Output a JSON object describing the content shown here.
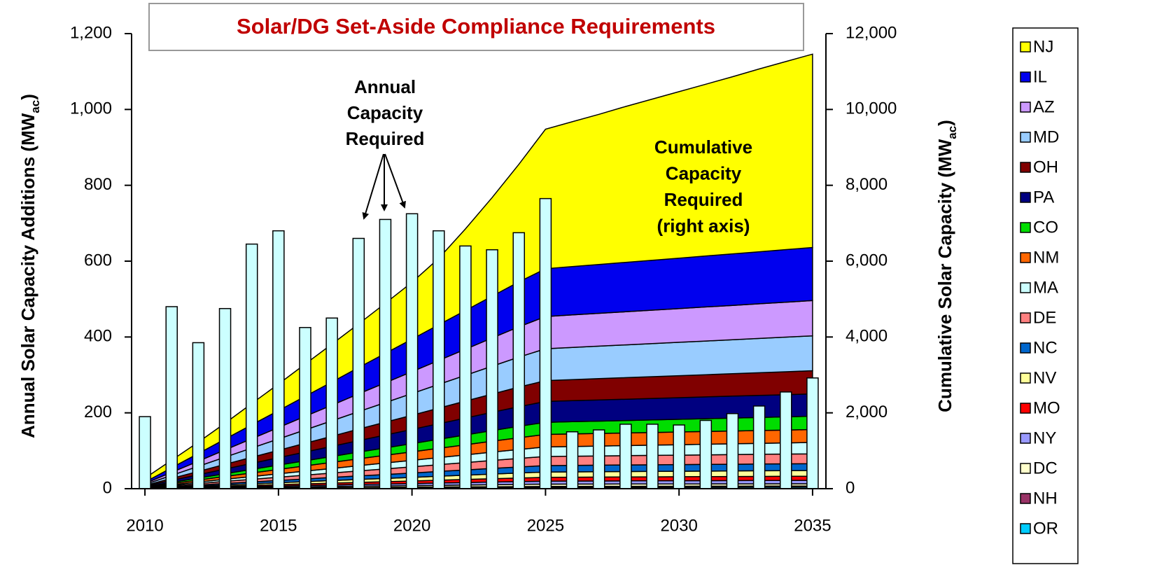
{
  "chart_data": {
    "type": "area",
    "title": "Solar/DG Set-Aside Compliance Requirements",
    "ylabel": [
      "Annual Solar Capacity Additions (MW",
      "ac",
      ")"
    ],
    "y2label": [
      "Cumulative Solar Capacity (MW",
      "ac",
      ")"
    ],
    "annotations": [
      [
        "Annual",
        "Capacity",
        "Required"
      ],
      [
        "Cumulative",
        "Capacity",
        "Required",
        "(right axis)"
      ]
    ],
    "x": [
      2010,
      2011,
      2012,
      2013,
      2014,
      2015,
      2016,
      2017,
      2018,
      2019,
      2020,
      2021,
      2022,
      2023,
      2024,
      2025,
      2026,
      2027,
      2028,
      2029,
      2030,
      2031,
      2032,
      2033,
      2034,
      2035
    ],
    "xlim": [
      2009.5,
      2035.5
    ],
    "xticks": [
      2010,
      2015,
      2020,
      2025,
      2030,
      2035
    ],
    "ylim": [
      0,
      1200
    ],
    "yticks": [
      0,
      200,
      400,
      600,
      800,
      {
        "value": 1000,
        "label": "1,000"
      },
      {
        "value": 1200,
        "label": "1,200"
      }
    ],
    "y2lim": [
      0,
      12000
    ],
    "y2ticks": [
      0,
      {
        "value": 2000,
        "label": "2,000"
      },
      {
        "value": 4000,
        "label": "4,000"
      },
      {
        "value": 6000,
        "label": "6,000"
      },
      {
        "value": 8000,
        "label": "8,000"
      },
      {
        "value": 10000,
        "label": "10,000"
      },
      {
        "value": 12000,
        "label": "12,000"
      }
    ],
    "legend": "right",
    "annual": {
      "type": "bar",
      "axis": "y",
      "color": "#ccffff",
      "values": [
        190,
        480,
        385,
        475,
        645,
        680,
        425,
        450,
        660,
        710,
        725,
        680,
        640,
        630,
        675,
        765,
        150,
        155,
        170,
        170,
        168,
        180,
        198,
        218,
        255,
        292
      ]
    },
    "series": [
      {
        "name": "NJ",
        "color": "#ffff00",
        "axis": "y2",
        "values": [
          100,
          200,
          300,
          420,
          560,
          700,
          850,
          1000,
          1150,
          1320,
          1500,
          1750,
          2150,
          2600,
          3100,
          3680,
          3820,
          3960,
          4110,
          4250,
          4390,
          4530,
          4670,
          4820,
          4960,
          5100
        ]
      },
      {
        "name": "IL",
        "color": "#0000ee",
        "axis": "y2",
        "values": [
          38,
          120,
          202,
          284,
          365,
          447,
          529,
          611,
          693,
          775,
          857,
          939,
          1021,
          1103,
          1184,
          1260,
          1274,
          1288,
          1302,
          1316,
          1330,
          1344,
          1358,
          1372,
          1386,
          1400
        ]
      },
      {
        "name": "AZ",
        "color": "#cc99ff",
        "axis": "y2",
        "values": [
          26,
          81,
          136,
          191,
          247,
          302,
          357,
          412,
          468,
          523,
          578,
          633,
          689,
          744,
          799,
          850,
          858,
          866,
          874,
          882,
          890,
          898,
          906,
          914,
          922,
          930
        ]
      },
      {
        "name": "MD",
        "color": "#99ccff",
        "axis": "y2",
        "values": [
          25,
          80,
          134,
          189,
          244,
          298,
          353,
          407,
          462,
          517,
          571,
          626,
          680,
          735,
          790,
          840,
          848,
          856,
          864,
          872,
          880,
          888,
          896,
          904,
          912,
          920
        ]
      },
      {
        "name": "OH",
        "color": "#800000",
        "axis": "y2",
        "values": [
          17,
          52,
          88,
          124,
          160,
          195,
          231,
          267,
          303,
          338,
          374,
          410,
          446,
          481,
          517,
          550,
          556,
          562,
          568,
          574,
          580,
          586,
          592,
          598,
          604,
          610
        ]
      },
      {
        "name": "PA",
        "color": "#000080",
        "axis": "y2",
        "values": [
          17,
          52,
          88,
          124,
          160,
          195,
          231,
          267,
          303,
          338,
          374,
          410,
          446,
          481,
          517,
          550,
          554,
          558,
          562,
          566,
          570,
          574,
          578,
          582,
          586,
          590
        ]
      },
      {
        "name": "CO",
        "color": "#00dd00",
        "axis": "y2",
        "values": [
          10,
          30,
          51,
          72,
          93,
          114,
          134,
          155,
          176,
          197,
          218,
          238,
          259,
          280,
          301,
          320,
          323,
          326,
          329,
          332,
          335,
          338,
          341,
          344,
          347,
          350
        ]
      },
      {
        "name": "NM",
        "color": "#ff6600",
        "axis": "y2",
        "values": [
          10,
          31,
          53,
          74,
          96,
          117,
          139,
          160,
          182,
          203,
          224,
          246,
          267,
          289,
          310,
          330,
          331,
          332,
          333,
          334,
          335,
          336,
          337,
          338,
          339,
          340
        ]
      },
      {
        "name": "MA",
        "color": "#ccffff",
        "axis": "y2",
        "values": [
          8,
          24,
          40,
          56,
          73,
          89,
          105,
          121,
          138,
          154,
          170,
          186,
          203,
          219,
          235,
          250,
          255,
          260,
          265,
          270,
          275,
          280,
          285,
          290,
          295,
          300
        ]
      },
      {
        "name": "DE",
        "color": "#ff8080",
        "axis": "y2",
        "values": [
          7,
          23,
          38,
          54,
          70,
          85,
          101,
          116,
          132,
          148,
          163,
          179,
          194,
          210,
          226,
          240,
          242,
          244,
          246,
          248,
          250,
          252,
          254,
          256,
          258,
          260
        ]
      },
      {
        "name": "NC",
        "color": "#0066cc",
        "axis": "y2",
        "values": [
          5,
          16,
          27,
          38,
          49,
          60,
          71,
          82,
          94,
          105,
          116,
          127,
          138,
          149,
          160,
          170,
          171,
          172,
          173,
          174,
          175,
          176,
          177,
          178,
          179,
          180
        ]
      },
      {
        "name": "NV",
        "color": "#ffff99",
        "axis": "y2",
        "values": [
          4,
          13,
          22,
          32,
          41,
          50,
          59,
          68,
          77,
          86,
          95,
          104,
          113,
          123,
          132,
          140,
          141,
          142,
          143,
          144,
          145,
          146,
          147,
          148,
          149,
          150
        ]
      },
      {
        "name": "MO",
        "color": "#ff0000",
        "axis": "y2",
        "values": [
          3,
          10,
          16,
          23,
          29,
          36,
          42,
          49,
          55,
          62,
          68,
          75,
          81,
          88,
          94,
          100,
          101,
          102,
          103,
          104,
          105,
          106,
          107,
          108,
          109,
          110
        ]
      },
      {
        "name": "NY",
        "color": "#9999ff",
        "axis": "y2",
        "values": [
          2,
          8,
          13,
          18,
          23,
          28,
          34,
          39,
          44,
          49,
          54,
          60,
          65,
          70,
          75,
          80,
          81,
          82,
          83,
          84,
          85,
          86,
          87,
          88,
          89,
          90
        ]
      },
      {
        "name": "DC",
        "color": "#ffffcc",
        "axis": "y2",
        "values": [
          2,
          6,
          10,
          14,
          17,
          21,
          25,
          29,
          33,
          37,
          41,
          45,
          49,
          53,
          56,
          60,
          60,
          60,
          60,
          60,
          60,
          60,
          60,
          60,
          60,
          60
        ]
      },
      {
        "name": "NH",
        "color": "#993366",
        "axis": "y2",
        "values": [
          1,
          3,
          5,
          7,
          9,
          11,
          13,
          15,
          17,
          18,
          20,
          22,
          24,
          26,
          28,
          30,
          30,
          30,
          30,
          30,
          30,
          30,
          30,
          30,
          30,
          30
        ]
      },
      {
        "name": "OR",
        "color": "#00ccff",
        "axis": "y2",
        "values": [
          1,
          3,
          5,
          7,
          9,
          11,
          13,
          15,
          17,
          18,
          20,
          22,
          24,
          26,
          28,
          30,
          31,
          32,
          33,
          34,
          35,
          36,
          37,
          38,
          39,
          40
        ]
      }
    ]
  }
}
